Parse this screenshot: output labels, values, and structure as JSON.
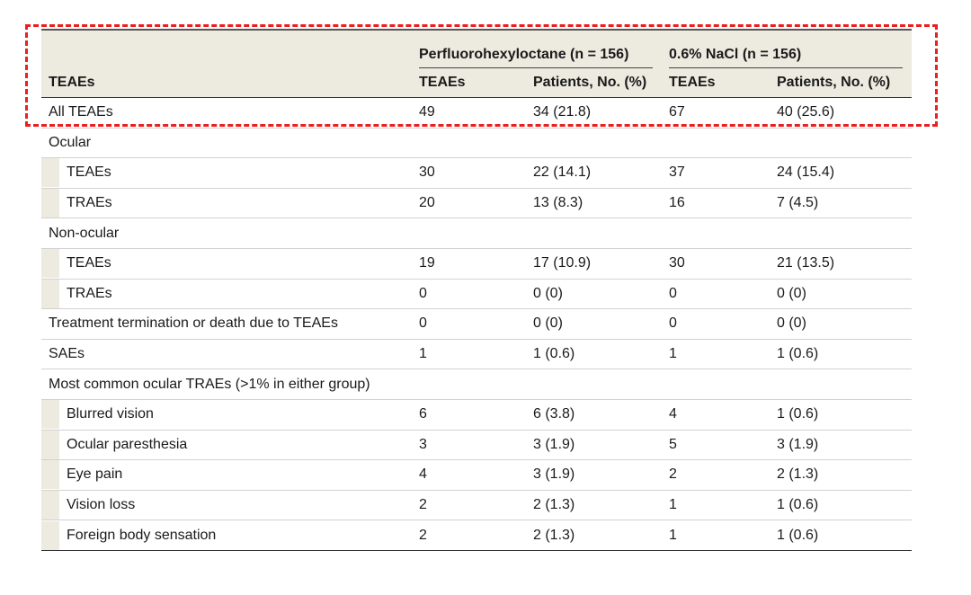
{
  "table": {
    "corner_header": "TEAEs",
    "groups": [
      {
        "label": "Perfluorohexyloctane (n = 156)"
      },
      {
        "label": "0.6% NaCl (n = 156)"
      }
    ],
    "sub_headers": [
      "TEAEs",
      "Patients, No. (%)",
      "TEAEs",
      "Patients, No. (%)"
    ],
    "rows": [
      {
        "label": "All TEAEs",
        "indent": false,
        "values": [
          "49",
          "34 (21.8)",
          "67",
          "40 (25.6)"
        ]
      },
      {
        "label": "Ocular",
        "indent": false,
        "values": [
          "",
          "",
          "",
          ""
        ]
      },
      {
        "label": "TEAEs",
        "indent": true,
        "values": [
          "30",
          "22 (14.1)",
          "37",
          "24 (15.4)"
        ]
      },
      {
        "label": "TRAEs",
        "indent": true,
        "values": [
          "20",
          "13 (8.3)",
          "16",
          "7 (4.5)"
        ]
      },
      {
        "label": "Non-ocular",
        "indent": false,
        "values": [
          "",
          "",
          "",
          ""
        ]
      },
      {
        "label": "TEAEs",
        "indent": true,
        "values": [
          "19",
          "17 (10.9)",
          "30",
          "21 (13.5)"
        ]
      },
      {
        "label": "TRAEs",
        "indent": true,
        "values": [
          "0",
          "0 (0)",
          "0",
          "0 (0)"
        ]
      },
      {
        "label": "Treatment termination or death due to TEAEs",
        "indent": false,
        "values": [
          "0",
          "0 (0)",
          "0",
          "0 (0)"
        ]
      },
      {
        "label": "SAEs",
        "indent": false,
        "values": [
          "1",
          "1 (0.6)",
          "1",
          "1 (0.6)"
        ]
      },
      {
        "label": "Most common ocular TRAEs (>1% in either group)",
        "indent": false,
        "values": [
          "",
          "",
          "",
          ""
        ]
      },
      {
        "label": "Blurred vision",
        "indent": true,
        "values": [
          "6",
          "6 (3.8)",
          "4",
          "1 (0.6)"
        ]
      },
      {
        "label": "Ocular paresthesia",
        "indent": true,
        "values": [
          "3",
          "3 (1.9)",
          "5",
          "3 (1.9)"
        ]
      },
      {
        "label": "Eye pain",
        "indent": true,
        "values": [
          "4",
          "3 (1.9)",
          "2",
          "2 (1.3)"
        ]
      },
      {
        "label": "Vision loss",
        "indent": true,
        "values": [
          "2",
          "2 (1.3)",
          "1",
          "1 (0.6)"
        ]
      },
      {
        "label": "Foreign body sensation",
        "indent": true,
        "values": [
          "2",
          "2 (1.3)",
          "1",
          "1 (0.6)"
        ]
      }
    ]
  },
  "highlight": {
    "color": "#e8201f",
    "style": "dashed"
  }
}
